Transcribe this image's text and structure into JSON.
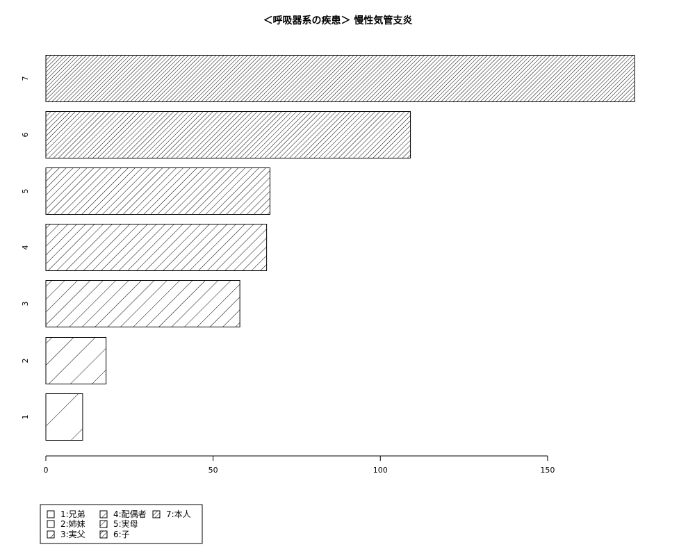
{
  "chart_data": {
    "type": "bar",
    "orientation": "horizontal",
    "title": "＜呼吸器系の疾患＞ 慢性気管支炎",
    "categories": [
      "1",
      "2",
      "3",
      "4",
      "5",
      "6",
      "7"
    ],
    "values": [
      11,
      18,
      58,
      66,
      67,
      109,
      176
    ],
    "xlim": [
      0,
      176
    ],
    "x_ticks": [
      "0",
      "50",
      "100",
      "150"
    ],
    "x_tick_values": [
      0,
      50,
      100,
      150
    ],
    "grid": false,
    "legend_position": "bottom-left",
    "legend": [
      "1:兄弟",
      "2:姉妹",
      "3:実父",
      "4:配偶者",
      "5:実母",
      "6:子",
      "7:本人"
    ],
    "colors": {
      "bar_fill": "#ffffff",
      "hatch": "#000000",
      "border": "#000000"
    }
  }
}
